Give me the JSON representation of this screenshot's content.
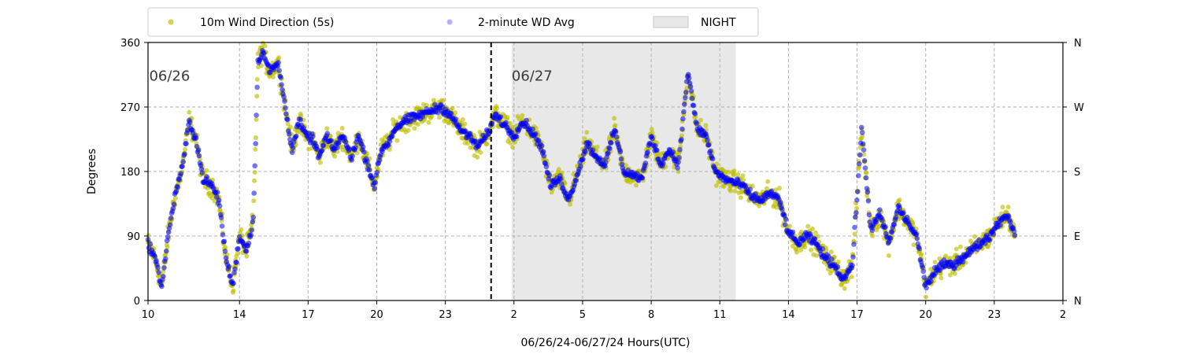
{
  "chart_data": {
    "type": "scatter",
    "title": "",
    "xlabel": "06/26/24-06/27/24  Hours(UTC)",
    "ylabel": "Degrees",
    "x_ticks": [
      {
        "hour": 10,
        "label": "10"
      },
      {
        "hour": 14,
        "label": "14"
      },
      {
        "hour": 17,
        "label": "17"
      },
      {
        "hour": 20,
        "label": "20"
      },
      {
        "hour": 23,
        "label": "23"
      },
      {
        "hour": 26,
        "label": "2"
      },
      {
        "hour": 29,
        "label": "5"
      },
      {
        "hour": 32,
        "label": "8"
      },
      {
        "hour": 35,
        "label": "11"
      },
      {
        "hour": 38,
        "label": "14"
      },
      {
        "hour": 41,
        "label": "17"
      },
      {
        "hour": 44,
        "label": "20"
      },
      {
        "hour": 47,
        "label": "23"
      },
      {
        "hour": 50,
        "label": "2"
      }
    ],
    "xlim": [
      10,
      50
    ],
    "ylim": [
      0,
      360
    ],
    "y_ticks": [
      0,
      90,
      180,
      270,
      360
    ],
    "y2_ticks": [
      {
        "value": 0,
        "label": "N"
      },
      {
        "value": 90,
        "label": "E"
      },
      {
        "value": 180,
        "label": "S"
      },
      {
        "value": 270,
        "label": "W"
      },
      {
        "value": 360,
        "label": "N"
      }
    ],
    "grid": true,
    "legend_position": "top",
    "night_span": {
      "start": 25.9,
      "end": 35.7,
      "label": "NIGHT",
      "color": "#e8e8e8"
    },
    "midnight_line": {
      "x": 25.0
    },
    "date_annotations": [
      {
        "text": "06/26",
        "x": 10.05,
        "y": 320
      },
      {
        "text": "06/27",
        "x": 25.9,
        "y": 320
      }
    ],
    "series": [
      {
        "name": "10m Wind Direction (5s)",
        "color": "#bfbf00",
        "spread": 22,
        "points_per_hour": 45
      },
      {
        "name": "2-minute WD Avg",
        "color": "#0000ff",
        "spread": 9,
        "points_per_hour": 30
      }
    ],
    "direction_trend": [
      [
        10.0,
        80
      ],
      [
        10.3,
        60
      ],
      [
        10.6,
        20
      ],
      [
        10.9,
        95
      ],
      [
        11.2,
        150
      ],
      [
        11.5,
        185
      ],
      [
        11.8,
        250
      ],
      [
        12.1,
        225
      ],
      [
        12.4,
        170
      ],
      [
        12.8,
        160
      ],
      [
        13.1,
        140
      ],
      [
        13.4,
        60
      ],
      [
        13.7,
        20
      ],
      [
        14.0,
        90
      ],
      [
        14.3,
        70
      ],
      [
        14.6,
        110
      ],
      [
        14.8,
        330
      ],
      [
        15.0,
        350
      ],
      [
        15.3,
        320
      ],
      [
        15.7,
        330
      ],
      [
        16.0,
        270
      ],
      [
        16.3,
        210
      ],
      [
        16.6,
        250
      ],
      [
        16.9,
        230
      ],
      [
        17.2,
        225
      ],
      [
        17.5,
        200
      ],
      [
        17.8,
        230
      ],
      [
        18.1,
        210
      ],
      [
        18.5,
        230
      ],
      [
        18.9,
        200
      ],
      [
        19.2,
        230
      ],
      [
        19.6,
        190
      ],
      [
        19.9,
        160
      ],
      [
        20.2,
        210
      ],
      [
        20.5,
        220
      ],
      [
        20.8,
        240
      ],
      [
        21.2,
        250
      ],
      [
        21.6,
        255
      ],
      [
        22.0,
        260
      ],
      [
        22.4,
        265
      ],
      [
        22.8,
        270
      ],
      [
        23.2,
        260
      ],
      [
        23.6,
        240
      ],
      [
        24.0,
        230
      ],
      [
        24.4,
        215
      ],
      [
        24.8,
        230
      ],
      [
        25.2,
        260
      ],
      [
        25.6,
        245
      ],
      [
        26.0,
        230
      ],
      [
        26.4,
        250
      ],
      [
        26.8,
        235
      ],
      [
        27.2,
        215
      ],
      [
        27.6,
        160
      ],
      [
        28.0,
        170
      ],
      [
        28.4,
        140
      ],
      [
        28.8,
        180
      ],
      [
        29.2,
        220
      ],
      [
        29.6,
        200
      ],
      [
        30.0,
        190
      ],
      [
        30.4,
        240
      ],
      [
        30.8,
        180
      ],
      [
        31.2,
        175
      ],
      [
        31.6,
        170
      ],
      [
        32.0,
        230
      ],
      [
        32.4,
        190
      ],
      [
        32.8,
        210
      ],
      [
        33.2,
        190
      ],
      [
        33.6,
        320
      ],
      [
        34.0,
        240
      ],
      [
        34.4,
        230
      ],
      [
        34.8,
        180
      ],
      [
        35.2,
        170
      ],
      [
        35.6,
        165
      ],
      [
        36.0,
        160
      ],
      [
        36.4,
        145
      ],
      [
        36.8,
        140
      ],
      [
        37.2,
        150
      ],
      [
        37.6,
        140
      ],
      [
        38.0,
        95
      ],
      [
        38.4,
        80
      ],
      [
        38.8,
        90
      ],
      [
        39.2,
        80
      ],
      [
        39.6,
        60
      ],
      [
        40.0,
        50
      ],
      [
        40.4,
        30
      ],
      [
        40.8,
        50
      ],
      [
        41.2,
        240
      ],
      [
        41.6,
        100
      ],
      [
        42.0,
        120
      ],
      [
        42.4,
        80
      ],
      [
        42.8,
        130
      ],
      [
        43.2,
        110
      ],
      [
        43.6,
        90
      ],
      [
        44.0,
        20
      ],
      [
        44.4,
        40
      ],
      [
        44.8,
        50
      ],
      [
        45.2,
        50
      ],
      [
        45.6,
        60
      ],
      [
        46.0,
        70
      ],
      [
        46.4,
        80
      ],
      [
        46.8,
        90
      ],
      [
        47.2,
        110
      ],
      [
        47.6,
        120
      ],
      [
        47.9,
        90
      ]
    ]
  }
}
